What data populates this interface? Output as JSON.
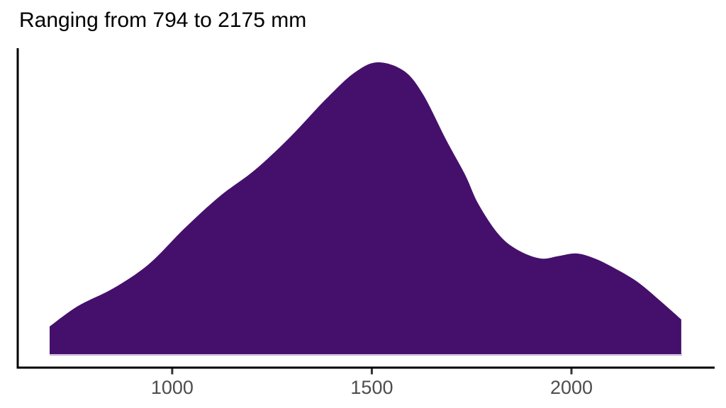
{
  "page": {
    "background": "#FFFFFF"
  },
  "title": {
    "text": "Ranging from 794 to 2175 mm",
    "color": "#000000"
  },
  "axes": {
    "axis_line_color": "#000000",
    "tick_mark_color": "#333333",
    "tick_label_color": "#4D4D4D",
    "x_tick_labels": [
      "1000",
      "1500",
      "2000"
    ]
  },
  "chart_data": {
    "type": "area",
    "subtype": "kernel-density",
    "title": "Ranging from 794 to 2175 mm",
    "x_unit": "mm",
    "data_range_min_mm": 794,
    "data_range_max_mm": 2175,
    "xlabel": "",
    "ylabel": "",
    "grid": false,
    "legend": "none",
    "fill_color": "#45106B",
    "baseline_edge_color": "#BCA8CE",
    "x_ticks": [
      1000,
      1500,
      2000
    ],
    "xlim": [
      693,
      2277
    ],
    "ylim_normalized": [
      0,
      1.05
    ],
    "peak": {
      "x_mm": 1510,
      "density": 1.0
    },
    "local_min": {
      "x_mm": 1922,
      "density": 0.33
    },
    "secondary_peak": {
      "x_mm": 2014,
      "density": 0.35
    },
    "curve": {
      "x_mm": [
        693,
        764,
        853,
        941,
        1030,
        1119,
        1207,
        1296,
        1385,
        1456,
        1514,
        1580,
        1628,
        1686,
        1734,
        1766,
        1816,
        1863,
        1922,
        1970,
        2014,
        2058,
        2106,
        2165,
        2223,
        2275
      ],
      "density": [
        0.095,
        0.165,
        0.226,
        0.308,
        0.43,
        0.541,
        0.631,
        0.745,
        0.874,
        0.964,
        1.0,
        0.971,
        0.891,
        0.735,
        0.614,
        0.517,
        0.413,
        0.359,
        0.328,
        0.337,
        0.345,
        0.328,
        0.296,
        0.248,
        0.182,
        0.119
      ]
    }
  }
}
